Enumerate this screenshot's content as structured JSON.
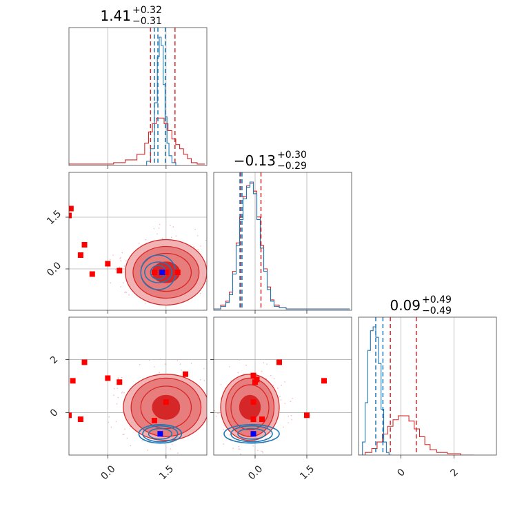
{
  "colors": {
    "red": "#d62728",
    "blue": "#1f77b4",
    "marker_red": "#ff0000",
    "marker_blue": "#0000ff",
    "fill_light": "#f1b3b3",
    "fill_mid": "#e87d7d",
    "fill_dark": "#d62728",
    "grid": "#b0b0b0"
  },
  "chart_data": {
    "type": "corner",
    "parameters": [
      {
        "title_value": "1.41",
        "title_plus": "+0.32",
        "title_minus": "−0.31",
        "range": [
          -1.0,
          2.55
        ],
        "ticks": [
          0.0,
          1.5
        ],
        "tick_labels": [
          "0.0",
          "1.5"
        ],
        "hist_red": {
          "x": [
            -0.9,
            -0.6,
            -0.3,
            0.0,
            0.3,
            0.6,
            0.9,
            1.0,
            1.1,
            1.2,
            1.3,
            1.4,
            1.5,
            1.6,
            1.7,
            1.8,
            1.9,
            2.0,
            2.1,
            2.2,
            2.4
          ],
          "y": [
            0.01,
            0.01,
            0.01,
            0.01,
            0.02,
            0.04,
            0.08,
            0.16,
            0.24,
            0.3,
            0.34,
            0.34,
            0.3,
            0.25,
            0.19,
            0.15,
            0.12,
            0.08,
            0.05,
            0.02,
            0.01
          ]
        },
        "hist_blue": {
          "x": [
            0.95,
            1.05,
            1.15,
            1.25,
            1.3,
            1.35,
            1.4,
            1.45,
            1.5,
            1.55,
            1.6,
            1.7,
            1.8
          ],
          "y": [
            0.0,
            0.03,
            0.12,
            0.45,
            0.78,
            0.92,
            0.86,
            0.58,
            0.35,
            0.16,
            0.07,
            0.02,
            0.0
          ]
        },
        "quantiles_red": [
          1.1,
          1.73
        ],
        "quantiles_blue": [
          1.2,
          1.29,
          1.48
        ]
      },
      {
        "title_value": "−0.13",
        "title_plus": "+0.30",
        "title_minus": "−0.29",
        "range": [
          -1.2,
          2.8
        ],
        "ticks": [
          0.0,
          1.5
        ],
        "tick_labels": [
          "0.0",
          "1.5"
        ],
        "hist_red": {
          "x": [
            -1.1,
            -0.9,
            -0.8,
            -0.7,
            -0.6,
            -0.5,
            -0.4,
            -0.3,
            -0.2,
            -0.1,
            0.0,
            0.1,
            0.2,
            0.3,
            0.4,
            0.5,
            0.6,
            0.8,
            1.0,
            1.5,
            2.0,
            2.5
          ],
          "y": [
            0.01,
            0.04,
            0.07,
            0.14,
            0.3,
            0.52,
            0.72,
            0.88,
            0.96,
            0.98,
            0.92,
            0.72,
            0.5,
            0.32,
            0.18,
            0.08,
            0.04,
            0.02,
            0.01,
            0.01,
            0.01,
            0.01
          ]
        },
        "hist_blue": {
          "x": [
            -1.1,
            -0.9,
            -0.8,
            -0.7,
            -0.6,
            -0.5,
            -0.4,
            -0.3,
            -0.2,
            -0.1,
            0.0,
            0.1,
            0.2,
            0.3,
            0.4,
            0.5,
            0.6,
            0.8,
            1.0,
            1.5,
            2.0,
            2.5
          ],
          "y": [
            0.01,
            0.03,
            0.06,
            0.12,
            0.28,
            0.5,
            0.7,
            0.86,
            0.95,
            0.99,
            0.9,
            0.7,
            0.48,
            0.3,
            0.16,
            0.07,
            0.03,
            0.02,
            0.01,
            0.01,
            0.01,
            0.01
          ]
        },
        "quantiles_red": [
          -0.42,
          0.17
        ],
        "quantiles_blue": [
          -0.44,
          -0.38
        ]
      },
      {
        "title_value": "0.09",
        "title_plus": "+0.49",
        "title_minus": "−0.49",
        "range": [
          -1.6,
          3.6
        ],
        "ticks": [
          0.0,
          2.0
        ],
        "tick_labels": [
          "0",
          "2"
        ],
        "hist_red": {
          "x": [
            -1.5,
            -1.2,
            -1.0,
            -0.8,
            -0.6,
            -0.4,
            -0.2,
            0.0,
            0.2,
            0.4,
            0.6,
            0.8,
            1.0,
            1.2,
            1.5,
            2.0,
            2.5
          ],
          "y": [
            0.0,
            0.02,
            0.05,
            0.1,
            0.16,
            0.22,
            0.27,
            0.3,
            0.3,
            0.26,
            0.2,
            0.14,
            0.08,
            0.04,
            0.02,
            0.01,
            0.0
          ]
        },
        "hist_blue": {
          "x": [
            -1.5,
            -1.4,
            -1.3,
            -1.2,
            -1.1,
            -1.0,
            -0.9,
            -0.8,
            -0.7,
            -0.6,
            -0.5,
            -0.4
          ],
          "y": [
            0.0,
            0.1,
            0.4,
            0.8,
            0.95,
            0.98,
            0.9,
            0.7,
            0.35,
            0.1,
            0.02,
            0.0
          ]
        },
        "quantiles_red": [
          -0.4,
          0.58
        ],
        "quantiles_blue": [
          -0.95,
          -0.68
        ]
      }
    ],
    "pairs": [
      {
        "x_param": 0,
        "y_param": 1,
        "red_contours": {
          "center": [
            1.5,
            -0.1
          ],
          "radii": [
            [
              0.35,
              0.3
            ],
            [
              0.65,
              0.55
            ],
            [
              0.85,
              0.75
            ],
            [
              1.05,
              0.95
            ]
          ]
        },
        "blue_contours": {
          "center": [
            1.3,
            -0.1
          ],
          "radii": [
            [
              0.2,
              0.2
            ],
            [
              0.35,
              0.3
            ],
            [
              0.45,
              0.5
            ]
          ]
        },
        "markers_red": [
          [
            -0.95,
            1.75
          ],
          [
            -1.0,
            1.55
          ],
          [
            -0.6,
            0.7
          ],
          [
            -0.7,
            0.4
          ],
          [
            -0.4,
            -0.15
          ],
          [
            0.0,
            0.15
          ],
          [
            0.3,
            -0.05
          ],
          [
            1.2,
            -0.1
          ],
          [
            1.5,
            -0.1
          ],
          [
            1.8,
            -0.1
          ]
        ],
        "markers_blue": [
          [
            1.4,
            -0.1
          ]
        ]
      },
      {
        "x_param": 0,
        "y_param": 2,
        "red_contours": {
          "center": [
            1.5,
            0.2
          ],
          "radii": [
            [
              0.35,
              0.45
            ],
            [
              0.65,
              0.8
            ],
            [
              0.9,
              1.1
            ],
            [
              1.1,
              1.25
            ]
          ]
        },
        "blue_contours": {
          "center": [
            1.35,
            -0.8
          ],
          "radii": [
            [
              0.3,
              0.2
            ],
            [
              0.45,
              0.3
            ],
            [
              0.55,
              0.35
            ]
          ]
        },
        "markers_red": [
          [
            -0.9,
            1.2
          ],
          [
            -0.6,
            1.9
          ],
          [
            0.0,
            1.3
          ],
          [
            0.3,
            1.15
          ],
          [
            -1.0,
            -0.1
          ],
          [
            -0.7,
            -0.25
          ],
          [
            1.2,
            -0.3
          ],
          [
            1.5,
            0.4
          ],
          [
            2.0,
            1.45
          ]
        ],
        "markers_blue": [
          [
            1.35,
            -0.8
          ]
        ]
      },
      {
        "x_param": 1,
        "y_param": 2,
        "red_contours": {
          "center": [
            -0.15,
            0.2
          ],
          "radii": [
            [
              0.3,
              0.45
            ],
            [
              0.55,
              0.85
            ],
            [
              0.7,
              1.1
            ],
            [
              0.85,
              1.25
            ]
          ]
        },
        "blue_contours": {
          "center": [
            -0.1,
            -0.8
          ],
          "radii": [
            [
              0.4,
              0.2
            ],
            [
              0.6,
              0.3
            ],
            [
              0.8,
              0.35
            ]
          ]
        },
        "markers_red": [
          [
            -0.05,
            1.4
          ],
          [
            0.0,
            1.15
          ],
          [
            0.05,
            1.25
          ],
          [
            0.7,
            1.9
          ],
          [
            1.5,
            -0.1
          ],
          [
            2.0,
            1.2
          ],
          [
            -0.05,
            0.4
          ],
          [
            0.2,
            -0.25
          ],
          [
            -0.05,
            -0.25
          ]
        ],
        "markers_blue": [
          [
            -0.05,
            -0.8
          ]
        ]
      }
    ]
  }
}
